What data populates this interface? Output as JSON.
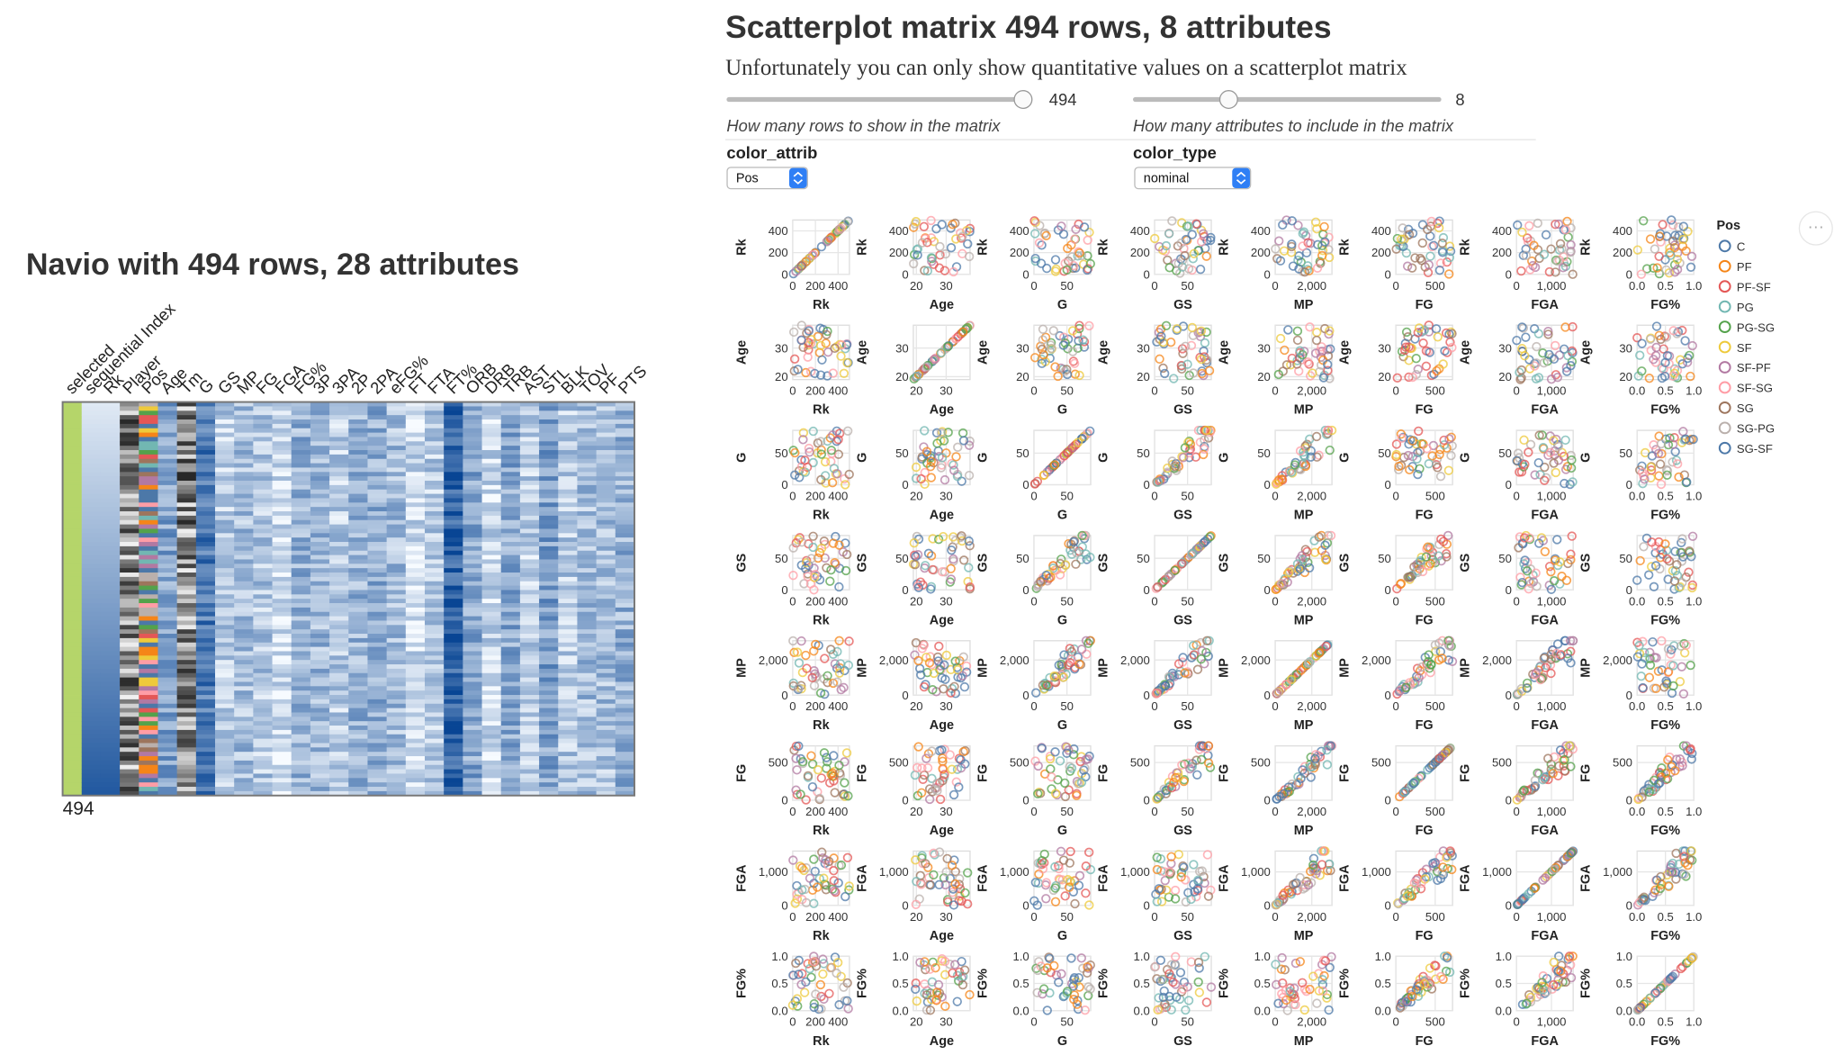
{
  "navio": {
    "title": "Navio with 494 rows, 28 attributes",
    "columns": [
      "selected",
      "sequential Index",
      "Rk",
      "Player",
      "Pos",
      "Age",
      "Tm",
      "G",
      "GS",
      "MP",
      "FG",
      "FGA",
      "FG%",
      "3P",
      "3PA",
      "2P",
      "2PA",
      "eFG%",
      "FT",
      "FTA",
      "FT%",
      "ORB",
      "DRB",
      "TRB",
      "AST",
      "STL",
      "BLK",
      "TOV",
      "PF",
      "PTS"
    ],
    "count": 494
  },
  "matrix": {
    "title": "Scatterplot matrix 494 rows, 8 attributes",
    "subtitle": "Unfortunately you can only show quantitative values on a scatterplot matrix",
    "controls": {
      "rows": {
        "value": 494,
        "caption": "How many rows to show in the matrix"
      },
      "attributes": {
        "value": 8,
        "caption": "How many attributes to include in the matrix"
      },
      "color_attrib": {
        "label": "color_attrib",
        "selected": "Pos"
      },
      "color_type": {
        "label": "color_type",
        "selected": "nominal"
      }
    },
    "attributes": [
      {
        "name": "Rk",
        "lim": [
          0,
          500
        ],
        "ticks": [
          0,
          200,
          400
        ]
      },
      {
        "name": "Age",
        "lim": [
          19,
          38
        ],
        "ticks": [
          20,
          30
        ]
      },
      {
        "name": "G",
        "lim": [
          0,
          86
        ],
        "ticks": [
          0,
          50
        ]
      },
      {
        "name": "GS",
        "lim": [
          0,
          86
        ],
        "ticks": [
          0,
          50
        ]
      },
      {
        "name": "MP",
        "lim": [
          0,
          3100
        ],
        "ticks": [
          0,
          {
            "value": 2000,
            "label": "2,000"
          }
        ]
      },
      {
        "name": "FG",
        "lim": [
          0,
          720
        ],
        "ticks": [
          0,
          500
        ]
      },
      {
        "name": "FGA",
        "lim": [
          0,
          1620
        ],
        "ticks": [
          0,
          {
            "value": 1000,
            "label": "1,000"
          }
        ]
      },
      {
        "name": "FG%",
        "lim": [
          0,
          1
        ],
        "ticks": [
          {
            "value": 0,
            "label": "0.0"
          },
          {
            "value": 0.5,
            "label": "0.5"
          },
          {
            "value": 1,
            "label": "1.0"
          }
        ]
      }
    ],
    "legend": {
      "title": "Pos",
      "entries": [
        {
          "name": "C",
          "color": "#4c78a8"
        },
        {
          "name": "PF",
          "color": "#f58518"
        },
        {
          "name": "PF-SF",
          "color": "#e45756"
        },
        {
          "name": "PG",
          "color": "#72b7b2"
        },
        {
          "name": "PG-SG",
          "color": "#54a24b"
        },
        {
          "name": "SF",
          "color": "#eeca3b"
        },
        {
          "name": "SF-PF",
          "color": "#b279a2"
        },
        {
          "name": "SF-SG",
          "color": "#ff9da6"
        },
        {
          "name": "SG",
          "color": "#9d755d"
        },
        {
          "name": "SG-PG",
          "color": "#bab0ac"
        },
        {
          "name": "SG-SF",
          "color": "#4c78a8"
        }
      ]
    }
  }
}
